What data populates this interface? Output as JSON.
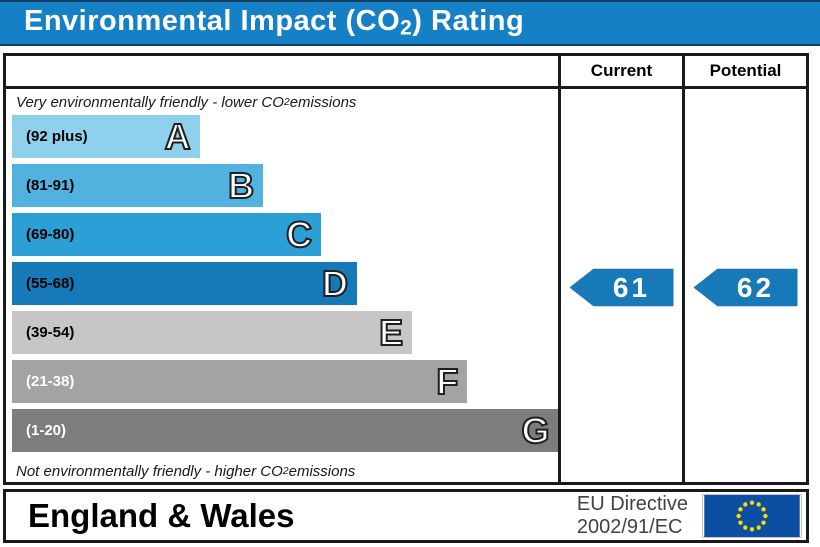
{
  "title": {
    "pre": "Environmental Impact (CO",
    "sub": "2",
    "post": ") Rating"
  },
  "columns": {
    "current": "Current",
    "potential": "Potential"
  },
  "notes": {
    "top": {
      "pre": "Very environmentally friendly - lower CO",
      "sub": "2",
      "post": " emissions"
    },
    "bottom": {
      "pre": "Not environmentally friendly - higher CO",
      "sub": "2",
      "post": " emissions"
    }
  },
  "bands": [
    {
      "letter": "A",
      "range": "(92 plus)",
      "color": "#8fd0ec",
      "label_color": "#000000",
      "width_pct": 34
    },
    {
      "letter": "B",
      "range": "(81-91)",
      "color": "#51b2e0",
      "label_color": "#000000",
      "width_pct": 45.5
    },
    {
      "letter": "C",
      "range": "(69-80)",
      "color": "#2b9fd6",
      "label_color": "#000000",
      "width_pct": 56
    },
    {
      "letter": "D",
      "range": "(55-68)",
      "color": "#1879b8",
      "label_color": "#000000",
      "width_pct": 62.5
    },
    {
      "letter": "E",
      "range": "(39-54)",
      "color": "#c6c6c6",
      "label_color": "#000000",
      "width_pct": 72.5
    },
    {
      "letter": "F",
      "range": "(21-38)",
      "color": "#a3a3a3",
      "label_color": "#ffffff",
      "width_pct": 82.5
    },
    {
      "letter": "G",
      "range": "(1-20)",
      "color": "#7d7d7d",
      "label_color": "#ffffff",
      "width_pct": 99
    }
  ],
  "ratings": {
    "current": {
      "value": "61",
      "band": "D"
    },
    "potential": {
      "value": "62",
      "band": "D"
    }
  },
  "footer": {
    "region": "England & Wales",
    "directive_line1": "EU Directive",
    "directive_line2": "2002/91/EC"
  },
  "colors": {
    "title_bar": "#1580c6",
    "arrow": "#1879b8",
    "border": "#1a1a1a",
    "eu_flag_bg": "#0b4ea2",
    "eu_flag_stars": "#ffd800"
  },
  "chart_data": {
    "type": "bar",
    "orientation": "horizontal",
    "title": "Environmental Impact (CO2) Rating",
    "categories": [
      "A",
      "B",
      "C",
      "D",
      "E",
      "F",
      "G"
    ],
    "band_ranges": [
      "92 plus",
      "81-91",
      "69-80",
      "55-68",
      "39-54",
      "21-38",
      "1-20"
    ],
    "band_colors": [
      "#8fd0ec",
      "#51b2e0",
      "#2b9fd6",
      "#1879b8",
      "#c6c6c6",
      "#a3a3a3",
      "#7d7d7d"
    ],
    "bar_lengths_pct": [
      34,
      45.5,
      56,
      62.5,
      72.5,
      82.5,
      99
    ],
    "series": [
      {
        "name": "Current",
        "value": 61,
        "band": "D"
      },
      {
        "name": "Potential",
        "value": 62,
        "band": "D"
      }
    ],
    "annotations": [
      "Very environmentally friendly - lower CO2 emissions",
      "Not environmentally friendly - higher CO2 emissions"
    ],
    "scale_range": [
      1,
      100
    ],
    "legend_position": "none",
    "grid": false
  }
}
